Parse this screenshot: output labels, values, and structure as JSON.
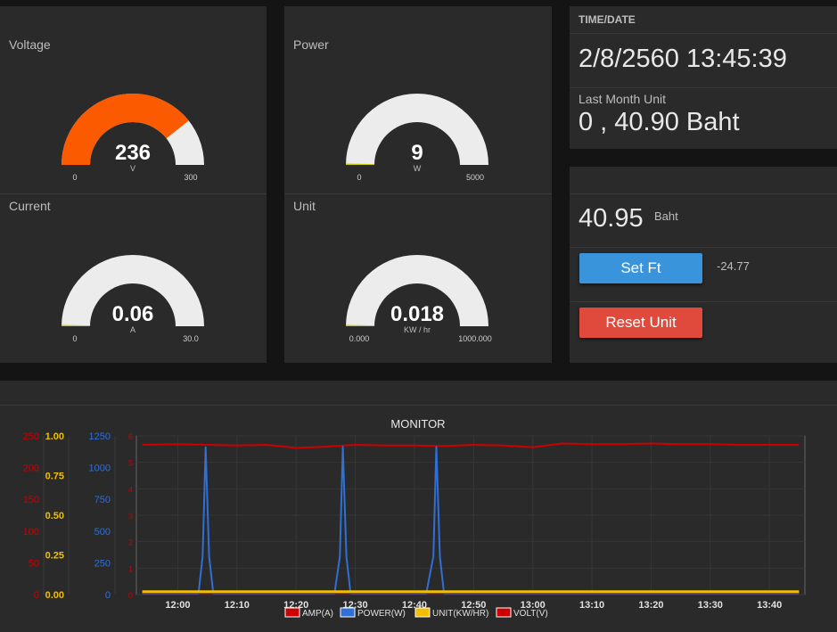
{
  "gauges": [
    {
      "id": "voltage",
      "title": "Voltage",
      "value": "236",
      "unit": "V",
      "min": "0",
      "max": "300",
      "fraction": 0.787,
      "color": "#fb5a00"
    },
    {
      "id": "power",
      "title": "Power",
      "value": "9",
      "unit": "W",
      "min": "0",
      "max": "5000",
      "fraction": 0.0018,
      "color": "#c6c600"
    },
    {
      "id": "current",
      "title": "Current",
      "value": "0.06",
      "unit": "A",
      "min": "0",
      "max": "30.0",
      "fraction": 0.002,
      "color": "#c6c600"
    },
    {
      "id": "unit",
      "title": "Unit",
      "value": "0.018",
      "unit": "KW / hr",
      "min": "0.000",
      "max": "1000.000",
      "fraction": 2e-05,
      "color": "#c6c600"
    }
  ],
  "info": {
    "time_label": "TIME/DATE",
    "time_value": "2/8/2560 13:45:39",
    "last_month_label": "Last Month Unit",
    "last_month_value": "0 , 40.90 Baht",
    "baht_value": "40.95",
    "baht_unit": "Baht",
    "set_ft_label": "Set Ft",
    "ft_value": "-24.77",
    "reset_label": "Reset Unit"
  },
  "colors": {
    "bg": "#141414",
    "panel": "#2a2a2a",
    "gauge_track": "#ececec",
    "volt": "#cc0000",
    "amp": "#cc0000",
    "power": "#2f6fd6",
    "unit": "#f0c000"
  },
  "chart_data": {
    "type": "line",
    "title": "MONITOR",
    "x_ticks": [
      "12:00",
      "12:10",
      "12:20",
      "12:30",
      "12:40",
      "12:50",
      "13:00",
      "13:10",
      "13:20",
      "13:30",
      "13:40"
    ],
    "x_range_minutes": [
      -7,
      106
    ],
    "axes": [
      {
        "series": "VOLT(V)",
        "ticks": [
          "250",
          "200",
          "150",
          "100",
          "50",
          "0"
        ],
        "range": [
          0,
          250
        ],
        "color": "#cc0000"
      },
      {
        "series": "UNIT(KW/HR)",
        "ticks": [
          "1.00",
          "0.75",
          "0.50",
          "0.25",
          "0.00"
        ],
        "range": [
          0,
          1
        ],
        "color": "#f0c000"
      },
      {
        "series": "POWER(W)",
        "ticks": [
          "1250",
          "1000",
          "750",
          "500",
          "250",
          "0"
        ],
        "range": [
          0,
          1250
        ],
        "color": "#2f6fd6"
      },
      {
        "series": "AMP(A)",
        "ticks": [
          "6",
          "5",
          "4",
          "3",
          "2",
          "1",
          "0"
        ],
        "range": [
          0,
          6
        ],
        "color": "#cc0000"
      }
    ],
    "legend": [
      "AMP(A)",
      "POWER(W)",
      "UNIT(KW/HR)",
      "VOLT(V)"
    ],
    "series": [
      {
        "name": "VOLT(V)",
        "axis": 0,
        "color": "#cc0000",
        "x": [
          -6,
          0,
          5,
          10,
          15,
          20,
          25,
          30,
          35,
          40,
          45,
          50,
          55,
          60,
          65,
          70,
          75,
          80,
          85,
          90,
          95,
          100,
          105
        ],
        "y": [
          236,
          237,
          236,
          235,
          236,
          231,
          233,
          236,
          235,
          235,
          234,
          236,
          235,
          232,
          238,
          237,
          237,
          238,
          237,
          237,
          236,
          236,
          236
        ]
      },
      {
        "name": "POWER(W)",
        "axis": 2,
        "color": "#2f6fd6",
        "x": [
          -6,
          3.5,
          4.2,
          4.7,
          5.3,
          6,
          26.5,
          27.4,
          27.9,
          28.5,
          29.2,
          42,
          43.2,
          43.7,
          44.3,
          45,
          105
        ],
        "y": [
          9,
          9,
          300,
          1160,
          300,
          9,
          9,
          300,
          1165,
          300,
          9,
          9,
          300,
          1165,
          300,
          9,
          9
        ]
      },
      {
        "name": "AMP(A)",
        "axis": 3,
        "color": "#cc0000",
        "x": [
          -6,
          105
        ],
        "y": [
          0.06,
          0.06
        ]
      },
      {
        "name": "UNIT(KW/HR)",
        "axis": 1,
        "color": "#f0c000",
        "x": [
          -6,
          105
        ],
        "y": [
          0.018,
          0.018
        ]
      }
    ]
  }
}
